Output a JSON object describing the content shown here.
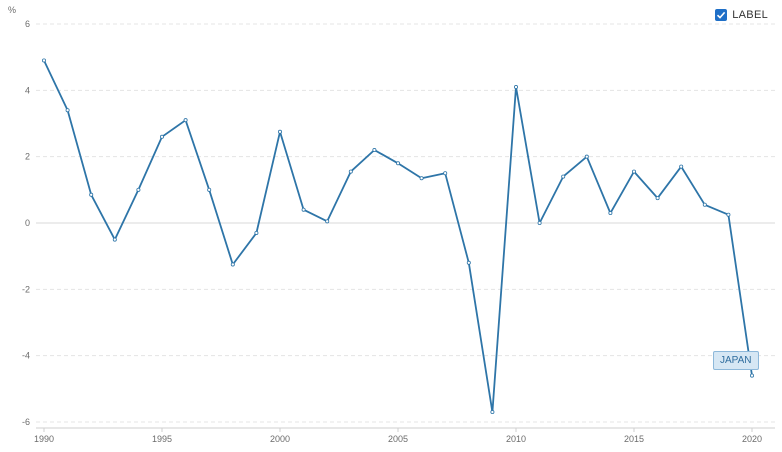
{
  "legend": {
    "label": "LABEL",
    "checked": true
  },
  "colors": {
    "line": "#2e75a8",
    "grid": "#e4e4e4",
    "zero_line": "#d8d8d8",
    "axis": "#cfcfcf",
    "check": "#1f6fc7"
  },
  "chart_data": {
    "type": "line",
    "ylabel": "%",
    "ylim": [
      -6,
      6
    ],
    "y_ticks": [
      6,
      4,
      2,
      0,
      -2,
      -4,
      -6
    ],
    "xlim": [
      1990,
      2020
    ],
    "x_ticks": [
      1990,
      1995,
      2000,
      2005,
      2010,
      2015,
      2020
    ],
    "grid": true,
    "legend_position": "top-right",
    "x": [
      1990,
      1991,
      1992,
      1993,
      1994,
      1995,
      1996,
      1997,
      1998,
      1999,
      2000,
      2001,
      2002,
      2003,
      2004,
      2005,
      2006,
      2007,
      2008,
      2009,
      2010,
      2011,
      2012,
      2013,
      2014,
      2015,
      2016,
      2017,
      2018,
      2019,
      2020
    ],
    "series": [
      {
        "name": "JAPAN",
        "values": [
          4.9,
          3.4,
          0.85,
          -0.5,
          1.0,
          2.6,
          3.1,
          1.0,
          -1.25,
          -0.3,
          2.75,
          0.4,
          0.05,
          1.55,
          2.2,
          1.8,
          1.35,
          1.5,
          -1.2,
          -5.7,
          4.1,
          0.0,
          1.4,
          2.0,
          0.3,
          1.55,
          0.75,
          1.7,
          0.55,
          0.25,
          -4.6
        ]
      }
    ]
  }
}
